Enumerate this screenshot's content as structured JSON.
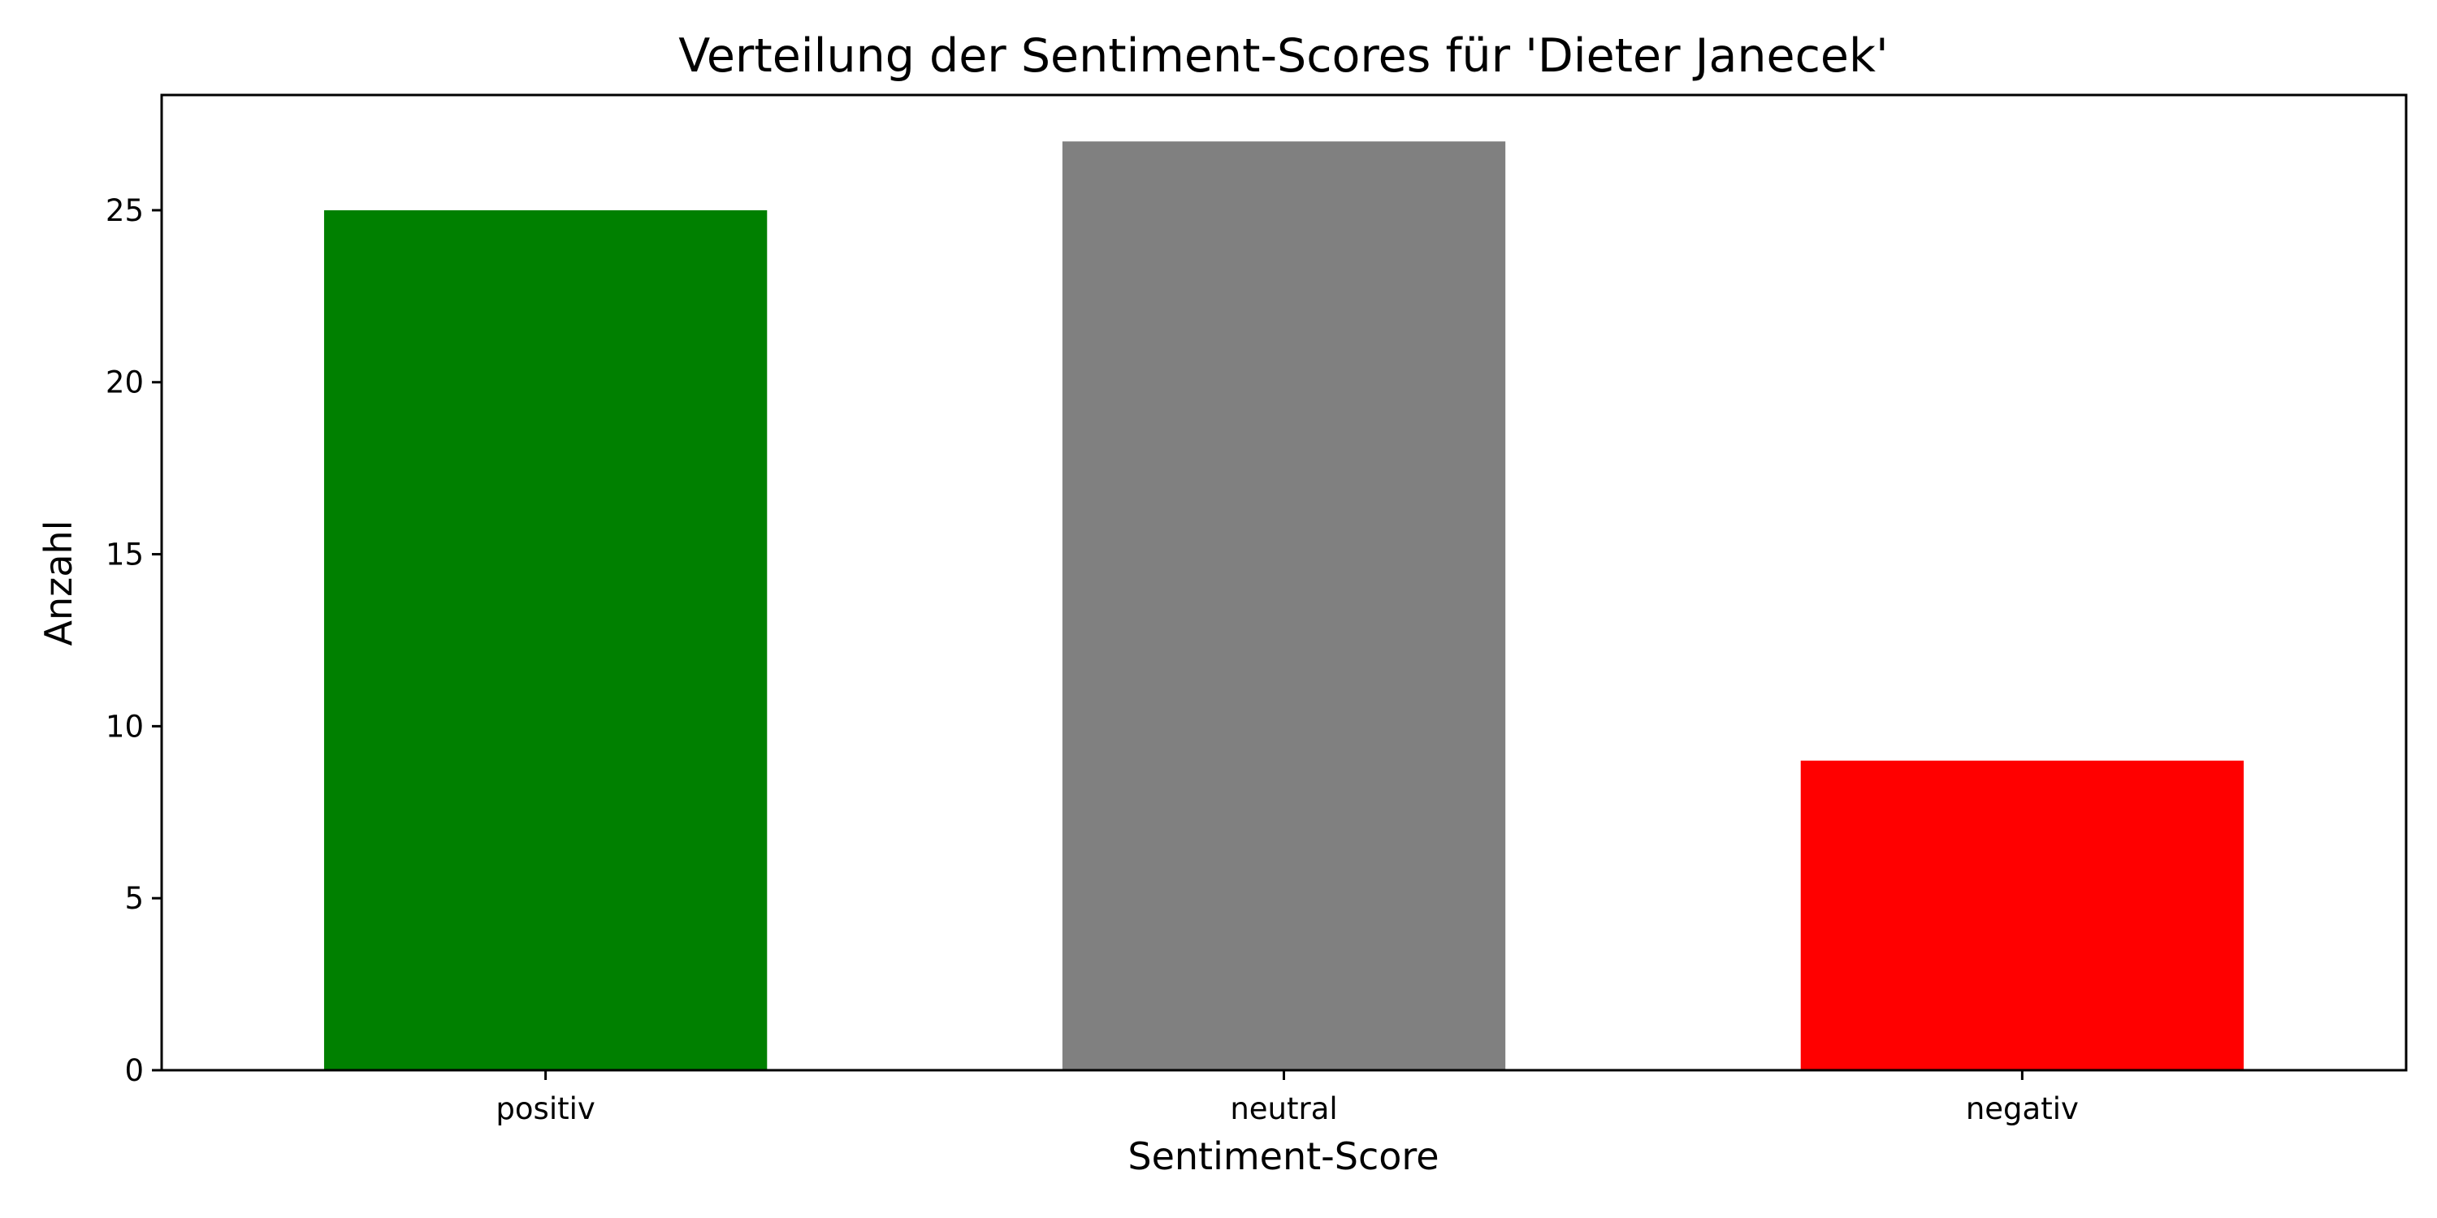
{
  "chart_data": {
    "type": "bar",
    "title": "Verteilung der Sentiment-Scores für 'Dieter Janecek'",
    "xlabel": "Sentiment-Score",
    "ylabel": "Anzahl",
    "categories": [
      "positiv",
      "neutral",
      "negativ"
    ],
    "values": [
      25,
      27,
      9
    ],
    "colors": [
      "#008000",
      "#808080",
      "#ff0000"
    ],
    "ylim": [
      0,
      28.35
    ],
    "yticks": [
      0,
      5,
      10,
      15,
      20,
      25
    ],
    "zero_line": "dashed",
    "grid": false,
    "legend": "none"
  }
}
